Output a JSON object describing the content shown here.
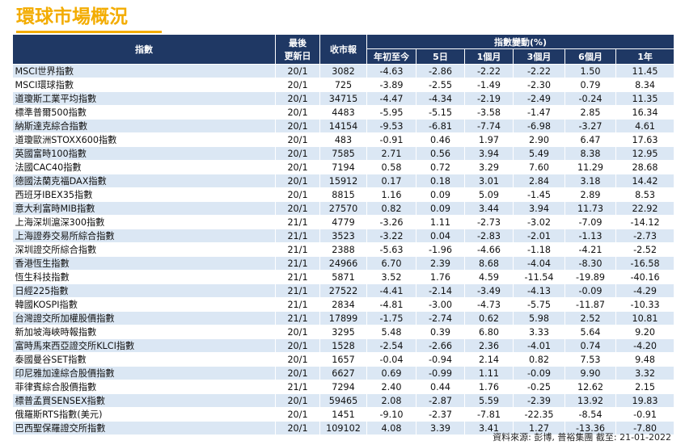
{
  "title": "環球市場概況",
  "header": {
    "index": "指數",
    "last_update": [
      "最後",
      "更新日"
    ],
    "close": "收市報",
    "change_group": "指數變動(%)",
    "periods": [
      "年初至今",
      "5日",
      "1個月",
      "3個月",
      "6個月",
      "1年"
    ]
  },
  "rows": [
    [
      "MSCI世界指數",
      "20/1",
      "3082",
      "-4.63",
      "-2.86",
      "-2.22",
      "-2.22",
      "1.50",
      "11.45"
    ],
    [
      "MSCI環球指數",
      "20/1",
      "725",
      "-3.89",
      "-2.55",
      "-1.49",
      "-2.30",
      "0.79",
      "8.34"
    ],
    [
      "道瓊斯工業平均指數",
      "20/1",
      "34715",
      "-4.47",
      "-4.34",
      "-2.19",
      "-2.49",
      "-0.24",
      "11.35"
    ],
    [
      "標準普爾500指數",
      "20/1",
      "4483",
      "-5.95",
      "-5.15",
      "-3.58",
      "-1.47",
      "2.85",
      "16.34"
    ],
    [
      "納斯達克綜合指數",
      "20/1",
      "14154",
      "-9.53",
      "-6.81",
      "-7.74",
      "-6.98",
      "-3.27",
      "4.61"
    ],
    [
      "道瓊歐洲STOXX600指數",
      "20/1",
      "483",
      "-0.91",
      "0.46",
      "1.97",
      "2.90",
      "6.47",
      "17.63"
    ],
    [
      "英國富時100指數",
      "20/1",
      "7585",
      "2.71",
      "0.56",
      "3.94",
      "5.49",
      "8.38",
      "12.95"
    ],
    [
      "法國CAC40指數",
      "20/1",
      "7194",
      "0.58",
      "0.72",
      "3.29",
      "7.60",
      "11.29",
      "28.68"
    ],
    [
      "德國法蘭克福DAX指數",
      "20/1",
      "15912",
      "0.17",
      "0.18",
      "3.01",
      "2.84",
      "3.18",
      "14.42"
    ],
    [
      "西班牙IBEX35指數",
      "20/1",
      "8815",
      "1.16",
      "0.09",
      "5.09",
      "-1.45",
      "2.89",
      "8.53"
    ],
    [
      "意大利富時MIB指數",
      "20/1",
      "27570",
      "0.82",
      "0.09",
      "3.44",
      "3.94",
      "11.73",
      "22.92"
    ],
    [
      "上海深圳滬深300指數",
      "21/1",
      "4779",
      "-3.26",
      "1.11",
      "-2.73",
      "-3.02",
      "-7.09",
      "-14.12"
    ],
    [
      "上海證券交易所綜合指數",
      "21/1",
      "3523",
      "-3.22",
      "0.04",
      "-2.83",
      "-2.01",
      "-1.13",
      "-2.73"
    ],
    [
      "深圳證交所綜合指數",
      "21/1",
      "2388",
      "-5.63",
      "-1.96",
      "-4.66",
      "-1.18",
      "-4.21",
      "-2.52"
    ],
    [
      "香港恆生指數",
      "21/1",
      "24966",
      "6.70",
      "2.39",
      "8.68",
      "-4.04",
      "-8.30",
      "-16.58"
    ],
    [
      "恆生科技指數",
      "21/1",
      "5871",
      "3.52",
      "1.76",
      "4.59",
      "-11.54",
      "-19.89",
      "-40.16"
    ],
    [
      "日經225指數",
      "21/1",
      "27522",
      "-4.41",
      "-2.14",
      "-3.49",
      "-4.13",
      "-0.09",
      "-4.29"
    ],
    [
      "韓國KOSPI指數",
      "21/1",
      "2834",
      "-4.81",
      "-3.00",
      "-4.73",
      "-5.75",
      "-11.87",
      "-10.33"
    ],
    [
      "台灣證交所加權股價指數",
      "21/1",
      "17899",
      "-1.75",
      "-2.74",
      "0.62",
      "5.98",
      "2.52",
      "10.81"
    ],
    [
      "新加坡海峽時報指數",
      "20/1",
      "3295",
      "5.48",
      "0.39",
      "6.80",
      "3.33",
      "5.64",
      "9.20"
    ],
    [
      "富時馬來西亞證交所KLCI指數",
      "20/1",
      "1528",
      "-2.54",
      "-2.66",
      "2.36",
      "-4.01",
      "0.74",
      "-4.20"
    ],
    [
      "泰國曼谷SET指數",
      "20/1",
      "1657",
      "-0.04",
      "-0.94",
      "2.14",
      "0.82",
      "7.53",
      "9.48"
    ],
    [
      "印尼雅加達綜合股價指數",
      "20/1",
      "6627",
      "0.69",
      "-0.99",
      "1.11",
      "-0.09",
      "9.90",
      "3.32"
    ],
    [
      "菲律賓綜合股價指數",
      "21/1",
      "7294",
      "2.40",
      "0.44",
      "1.76",
      "-0.25",
      "12.62",
      "2.15"
    ],
    [
      "標普孟買SENSEX指數",
      "20/1",
      "59465",
      "2.08",
      "-2.87",
      "5.59",
      "-2.39",
      "13.92",
      "19.83"
    ],
    [
      "俄羅斯RTS指數(美元)",
      "20/1",
      "1451",
      "-9.10",
      "-2.37",
      "-7.81",
      "-22.35",
      "-8.54",
      "-0.91"
    ],
    [
      "巴西聖保羅證交所指數",
      "20/1",
      "109102",
      "4.08",
      "3.39",
      "3.41",
      "1.27",
      "-13.36",
      "-7.80"
    ]
  ],
  "source": "資料來源: 彭博, 普裕集團 截至: 21-01-2022"
}
